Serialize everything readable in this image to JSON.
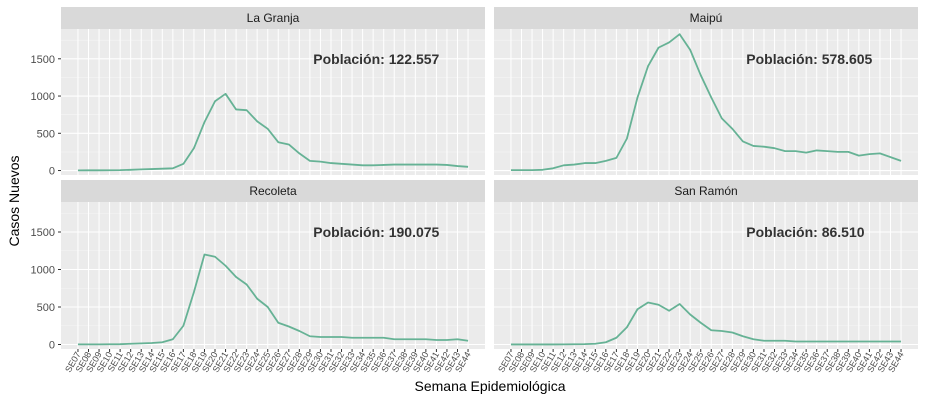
{
  "chart_data": {
    "type": "line",
    "xlabel": "Semana Epidemiológica",
    "ylabel": "Casos Nuevos",
    "ylim": [
      -60,
      1900
    ],
    "yticks": [
      0,
      500,
      1000,
      1500
    ],
    "categories": [
      "SE07",
      "SE08",
      "SE09",
      "SE10",
      "SE11",
      "SE12",
      "SE13",
      "SE14",
      "SE15",
      "SE16",
      "SE17",
      "SE18",
      "SE19",
      "SE20",
      "SE21",
      "SE22",
      "SE23",
      "SE24",
      "SE25",
      "SE26",
      "SE27",
      "SE28",
      "SE29",
      "SE30",
      "SE31",
      "SE32",
      "SE33",
      "SE34",
      "SE35",
      "SE36",
      "SE37",
      "SE38",
      "SE39",
      "SE40",
      "SE41",
      "SE42",
      "SE43",
      "SE44"
    ],
    "grid": true,
    "line_color": "#66b295",
    "panels": [
      {
        "title": "La Granja",
        "annotation": "Población: 122.557",
        "values": [
          2,
          3,
          3,
          4,
          5,
          10,
          15,
          20,
          25,
          30,
          90,
          300,
          650,
          930,
          1030,
          820,
          810,
          660,
          560,
          380,
          350,
          230,
          130,
          120,
          100,
          90,
          80,
          70,
          70,
          75,
          80,
          80,
          80,
          80,
          80,
          75,
          60,
          50
        ]
      },
      {
        "title": "Maipú",
        "annotation": "Población: 578.605",
        "values": [
          5,
          5,
          5,
          10,
          30,
          70,
          80,
          100,
          100,
          130,
          170,
          430,
          980,
          1400,
          1650,
          1720,
          1830,
          1620,
          1280,
          980,
          700,
          560,
          390,
          330,
          320,
          300,
          260,
          260,
          240,
          270,
          260,
          250,
          250,
          200,
          220,
          230,
          180,
          130
        ]
      },
      {
        "title": "Recoleta",
        "annotation": "Población: 190.075",
        "values": [
          2,
          2,
          2,
          3,
          4,
          10,
          15,
          20,
          30,
          70,
          250,
          700,
          1200,
          1170,
          1050,
          900,
          800,
          610,
          500,
          290,
          240,
          180,
          110,
          100,
          100,
          100,
          90,
          90,
          90,
          90,
          70,
          70,
          70,
          70,
          60,
          60,
          70,
          50
        ]
      },
      {
        "title": "San Ramón",
        "annotation": "Población:  86.510",
        "values": [
          1,
          1,
          1,
          1,
          1,
          2,
          3,
          5,
          10,
          30,
          90,
          230,
          470,
          560,
          530,
          450,
          540,
          400,
          290,
          190,
          180,
          160,
          110,
          70,
          50,
          50,
          50,
          40,
          40,
          40,
          40,
          40,
          40,
          40,
          40,
          40,
          40,
          40
        ]
      }
    ]
  }
}
